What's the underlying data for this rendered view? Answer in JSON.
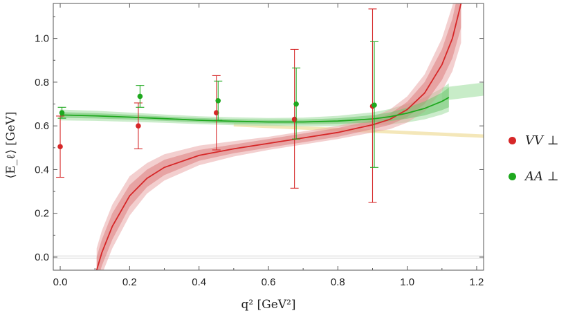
{
  "chart_data": {
    "type": "scatter",
    "title": "",
    "xlabel": "q² [GeV²]",
    "ylabel": "⟨E_ℓ⟩ [GeV]",
    "xlim": [
      -0.02,
      1.22
    ],
    "ylim": [
      -0.06,
      1.16
    ],
    "xticks": [
      "0.0",
      "0.2",
      "0.4",
      "0.6",
      "0.8",
      "1.0",
      "1.2"
    ],
    "yticks": [
      "0.0",
      "0.2",
      "0.4",
      "0.6",
      "0.8",
      "1.0"
    ],
    "grid": false,
    "legend_position": "right",
    "series": [
      {
        "name": "VV ⊥",
        "color": "#d62728",
        "points": [
          {
            "x": 0.0,
            "y": 0.505,
            "ylow": 0.365,
            "yhigh": 0.645
          },
          {
            "x": 0.225,
            "y": 0.6,
            "ylow": 0.495,
            "yhigh": 0.705
          },
          {
            "x": 0.45,
            "y": 0.66,
            "ylow": 0.49,
            "yhigh": 0.83
          },
          {
            "x": 0.675,
            "y": 0.63,
            "ylow": 0.315,
            "yhigh": 0.95
          },
          {
            "x": 0.9,
            "y": 0.69,
            "ylow": 0.25,
            "yhigh": 1.135
          }
        ],
        "fit": {
          "x": [
            0.105,
            0.12,
            0.15,
            0.2,
            0.25,
            0.3,
            0.4,
            0.5,
            0.6,
            0.7,
            0.8,
            0.9,
            0.95,
            1.0,
            1.05,
            1.1,
            1.13,
            1.155
          ],
          "y": [
            -0.06,
            0.02,
            0.14,
            0.28,
            0.36,
            0.41,
            0.465,
            0.495,
            0.52,
            0.545,
            0.57,
            0.605,
            0.63,
            0.675,
            0.75,
            0.88,
            1.0,
            1.16
          ],
          "inner_band": [
            0.06,
            0.06,
            0.06,
            0.05,
            0.04,
            0.035,
            0.025,
            0.02,
            0.02,
            0.02,
            0.02,
            0.02,
            0.025,
            0.035,
            0.05,
            0.07,
            0.09,
            0.11
          ],
          "outer_band": [
            0.1,
            0.1,
            0.1,
            0.09,
            0.07,
            0.06,
            0.045,
            0.035,
            0.03,
            0.03,
            0.03,
            0.035,
            0.045,
            0.06,
            0.085,
            0.12,
            0.15,
            0.18
          ]
        }
      },
      {
        "name": "AA ⊥",
        "color": "#1ea81e",
        "points": [
          {
            "x": 0.005,
            "y": 0.66,
            "ylow": 0.635,
            "yhigh": 0.685
          },
          {
            "x": 0.23,
            "y": 0.735,
            "ylow": 0.685,
            "yhigh": 0.785
          },
          {
            "x": 0.455,
            "y": 0.715,
            "ylow": 0.625,
            "yhigh": 0.805
          },
          {
            "x": 0.68,
            "y": 0.7,
            "ylow": 0.54,
            "yhigh": 0.865
          },
          {
            "x": 0.905,
            "y": 0.695,
            "ylow": 0.41,
            "yhigh": 0.985
          }
        ],
        "fit": {
          "x": [
            0.0,
            0.1,
            0.2,
            0.3,
            0.4,
            0.5,
            0.6,
            0.7,
            0.8,
            0.9,
            0.95,
            1.0,
            1.05,
            1.1,
            1.12
          ],
          "y": [
            0.65,
            0.646,
            0.64,
            0.633,
            0.626,
            0.621,
            0.618,
            0.618,
            0.622,
            0.632,
            0.642,
            0.658,
            0.68,
            0.712,
            0.73
          ],
          "inner_band": [
            0.013,
            0.012,
            0.011,
            0.01,
            0.01,
            0.01,
            0.01,
            0.011,
            0.013,
            0.017,
            0.02,
            0.025,
            0.032,
            0.04,
            0.045
          ],
          "outer_band": [
            0.025,
            0.023,
            0.021,
            0.019,
            0.018,
            0.018,
            0.018,
            0.02,
            0.024,
            0.03,
            0.035,
            0.042,
            0.05,
            0.06,
            0.065
          ]
        },
        "fit_extension": {
          "x": [
            1.1,
            1.22
          ],
          "y": [
            0.745,
            0.768
          ],
          "halfwidth": 0.03
        }
      }
    ],
    "reference_band": {
      "color": "#f2e2a8",
      "x": [
        0.5,
        1.22
      ],
      "y": [
        0.605,
        0.553
      ]
    },
    "zero_line": 0.0
  }
}
